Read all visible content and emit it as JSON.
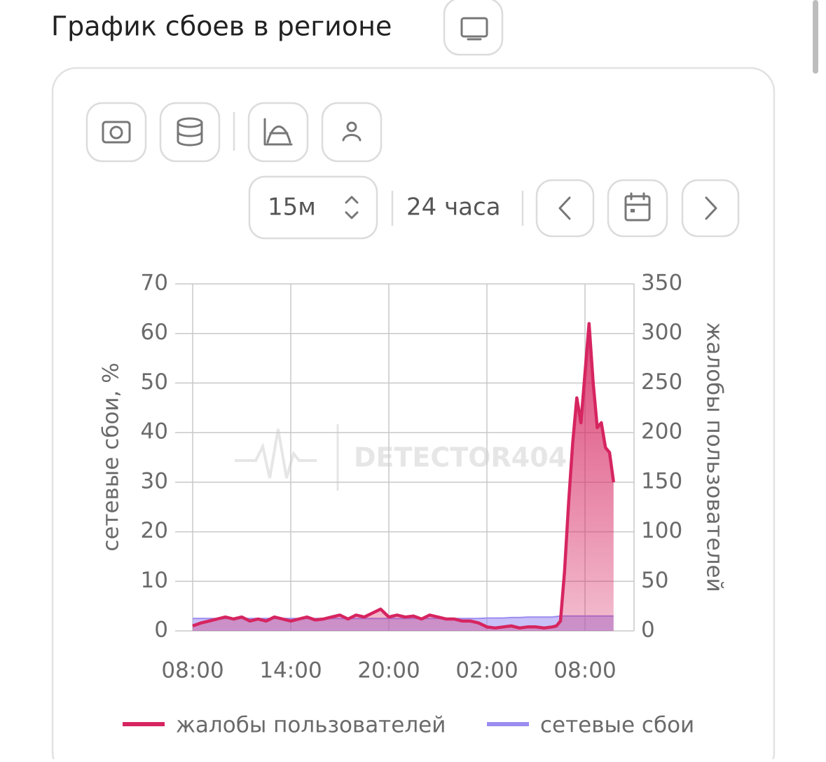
{
  "header": {
    "title": "График сбоев в регионе"
  },
  "controls": {
    "interval": "15м",
    "range": "24 часа"
  },
  "chart_data": {
    "type": "line",
    "watermark": "DETECTOR404",
    "y_label": "сетевые сбои, %",
    "y2_label": "жалобы пользователей",
    "x": [
      0,
      0.5,
      1,
      1.5,
      2,
      2.5,
      3,
      3.5,
      4,
      4.5,
      5,
      5.5,
      6,
      6.5,
      7,
      7.5,
      8,
      8.5,
      9,
      9.5,
      10,
      10.5,
      11,
      11.5,
      12,
      12.5,
      13,
      13.5,
      14,
      14.5,
      15,
      15.5,
      16,
      16.5,
      17,
      17.5,
      18,
      18.5,
      19,
      19.5,
      20,
      20.5,
      21,
      21.5,
      22,
      22.25,
      22.5,
      22.75,
      23,
      23.25,
      23.5,
      23.75,
      24,
      24.25,
      24.5,
      24.75,
      25,
      25.25,
      25.5,
      25.75
    ],
    "xlim": [
      0,
      27
    ],
    "xticks": [
      {
        "value": 0,
        "label": "08:00"
      },
      {
        "value": 6,
        "label": "14:00"
      },
      {
        "value": 12,
        "label": "20:00"
      },
      {
        "value": 18,
        "label": "02:00"
      },
      {
        "value": 24,
        "label": "08:00"
      }
    ],
    "ylim": [
      0,
      70
    ],
    "yticks": [
      0,
      10,
      20,
      30,
      40,
      50,
      60,
      70
    ],
    "y2lim": [
      0,
      350
    ],
    "y2ticks": [
      0,
      50,
      100,
      150,
      200,
      250,
      300,
      350
    ],
    "grid": true,
    "series": [
      {
        "name": "жалобы пользователей",
        "color": "#d62560",
        "axis": "y2",
        "values": [
          5,
          8,
          10,
          12,
          14,
          12,
          14,
          10,
          12,
          10,
          14,
          12,
          10,
          12,
          14,
          11,
          12,
          14,
          16,
          12,
          16,
          14,
          18,
          22,
          14,
          16,
          14,
          15,
          12,
          16,
          14,
          12,
          12,
          10,
          10,
          8,
          4,
          3,
          4,
          5,
          3,
          4,
          4,
          3,
          4,
          5,
          10,
          60,
          130,
          190,
          235,
          210,
          260,
          310,
          250,
          205,
          210,
          185,
          180,
          150
        ]
      },
      {
        "name": "сетевые сбои",
        "color": "#9b8cf0",
        "values": [
          2.5,
          2.5,
          2.5,
          2.5,
          2.5,
          2.5,
          2.5,
          2.5,
          2.5,
          2.5,
          2.5,
          2.5,
          2.5,
          2.5,
          2.5,
          2.5,
          2.5,
          2.5,
          2.5,
          2.5,
          2.5,
          2.5,
          2.5,
          2.5,
          2.5,
          2.5,
          2.5,
          2.5,
          2.5,
          2.5,
          2.5,
          2.5,
          2.5,
          2.5,
          2.5,
          2.5,
          2.6,
          2.6,
          2.6,
          2.7,
          2.7,
          2.8,
          2.8,
          2.8,
          2.8,
          2.9,
          3,
          3,
          3,
          3,
          3,
          3,
          3,
          3,
          3,
          3,
          3,
          3,
          3,
          3
        ]
      }
    ]
  }
}
